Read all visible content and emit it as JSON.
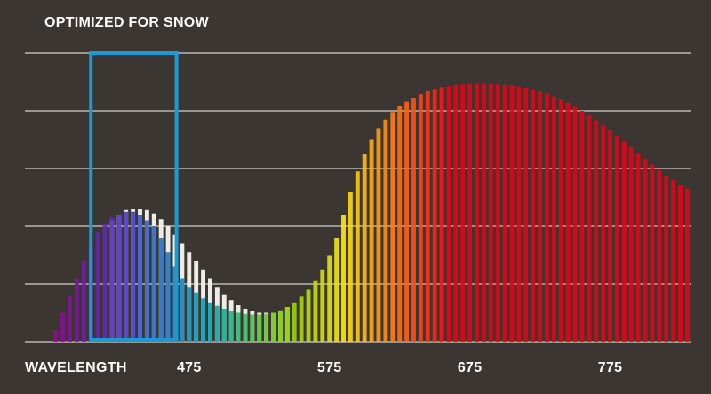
{
  "chart_data": {
    "type": "bar",
    "title": "OPTIMIZED FOR SNOW",
    "x_label": "WAVELENGTH",
    "x": [
      380,
      385,
      390,
      395,
      400,
      405,
      410,
      415,
      420,
      425,
      430,
      435,
      440,
      445,
      450,
      455,
      460,
      465,
      470,
      475,
      480,
      485,
      490,
      495,
      500,
      505,
      510,
      515,
      520,
      525,
      530,
      535,
      540,
      545,
      550,
      555,
      560,
      565,
      570,
      575,
      580,
      585,
      590,
      595,
      600,
      605,
      610,
      615,
      620,
      625,
      630,
      635,
      640,
      645,
      650,
      655,
      660,
      665,
      670,
      675,
      680,
      685,
      690,
      695,
      700,
      705,
      710,
      715,
      720,
      725,
      730,
      735,
      740,
      745,
      750,
      755,
      760,
      765,
      770,
      775,
      780,
      785,
      790,
      795,
      800,
      805,
      810,
      815,
      820,
      825,
      830
    ],
    "series": [
      {
        "color": "#ecebe6",
        "values": [
          null,
          null,
          null,
          null,
          null,
          null,
          null,
          null,
          2.1,
          2.2,
          2.28,
          2.3,
          2.3,
          2.28,
          2.22,
          2.12,
          2.0,
          1.85,
          1.7,
          1.55,
          1.4,
          1.25,
          1.1,
          0.95,
          0.82,
          0.72,
          0.63,
          0.57,
          0.53,
          0.5,
          0.5,
          0.5,
          0.54,
          0.6,
          null,
          null,
          null,
          null,
          null,
          null,
          null,
          null,
          null,
          null,
          null,
          null,
          null,
          null,
          null,
          null,
          null,
          null,
          null,
          null,
          null,
          null,
          null,
          null,
          null,
          null,
          null,
          null,
          null,
          null,
          null,
          null,
          null,
          null,
          null,
          null,
          null,
          null,
          null,
          null,
          null,
          null,
          null,
          null,
          null,
          null,
          null,
          null,
          null,
          null,
          null,
          null,
          null,
          null,
          null,
          null,
          null
        ]
      },
      {
        "color": "spectrum",
        "values": [
          0.2,
          0.5,
          0.8,
          1.1,
          1.4,
          1.7,
          1.9,
          2.05,
          2.15,
          2.2,
          2.25,
          2.25,
          2.2,
          2.1,
          2.0,
          1.8,
          1.55,
          1.3,
          1.1,
          0.95,
          0.85,
          0.75,
          0.68,
          0.62,
          0.57,
          0.53,
          0.5,
          0.48,
          0.47,
          0.47,
          0.48,
          0.5,
          0.54,
          0.6,
          0.68,
          0.78,
          0.9,
          1.05,
          1.25,
          1.5,
          1.8,
          2.2,
          2.6,
          2.95,
          3.25,
          3.5,
          3.7,
          3.85,
          3.98,
          4.08,
          4.16,
          4.23,
          4.29,
          4.34,
          4.38,
          4.41,
          4.43,
          4.45,
          4.46,
          4.47,
          4.47,
          4.47,
          4.47,
          4.46,
          4.45,
          4.44,
          4.42,
          4.4,
          4.37,
          4.34,
          4.3,
          4.25,
          4.2,
          4.14,
          4.07,
          4.0,
          3.92,
          3.84,
          3.75,
          3.66,
          3.57,
          3.47,
          3.37,
          3.27,
          3.17,
          3.07,
          2.97,
          2.88,
          2.8,
          2.72,
          2.65
        ]
      }
    ],
    "highlight": {
      "xlim": [
        405,
        466
      ],
      "color": "#1b9ad6"
    },
    "xlim": [
      377,
      831
    ],
    "xticks": [
      475,
      575,
      675,
      775
    ],
    "ylim": [
      0,
      5
    ],
    "yticks": [
      0,
      1,
      2,
      3,
      4,
      5
    ],
    "grid": true
  }
}
